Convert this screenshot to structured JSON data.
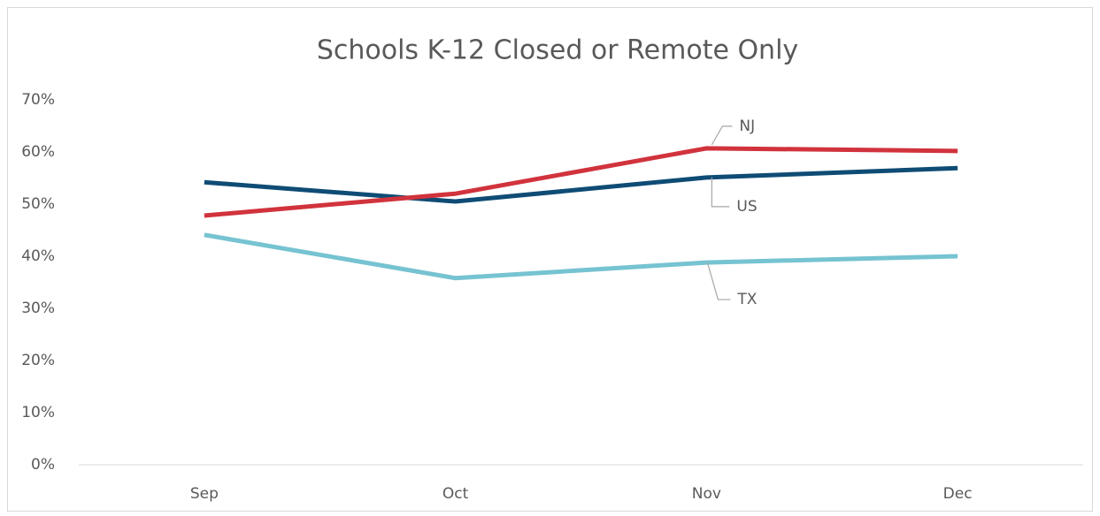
{
  "chart_data": {
    "type": "line",
    "title": "Schools K-12 Closed or Remote Only",
    "categories": [
      "Sep",
      "Oct",
      "Nov",
      "Dec"
    ],
    "series": [
      {
        "name": "US",
        "color": "#0f4c75",
        "values": [
          54.2,
          50.5,
          55.1,
          56.9
        ]
      },
      {
        "name": "NJ",
        "color": "#d1333d",
        "values": [
          47.8,
          52.0,
          60.7,
          60.2
        ]
      },
      {
        "name": "TX",
        "color": "#76c3d1",
        "values": [
          44.1,
          35.8,
          38.8,
          40.0
        ]
      }
    ],
    "ylim": [
      0,
      70
    ],
    "yticks": [
      {
        "value": 0,
        "label": "0%"
      },
      {
        "value": 10,
        "label": "10%"
      },
      {
        "value": 20,
        "label": "20%"
      },
      {
        "value": 30,
        "label": "30%"
      },
      {
        "value": 40,
        "label": "40%"
      },
      {
        "value": 50,
        "label": "50%"
      },
      {
        "value": 60,
        "label": "60%"
      },
      {
        "value": 70,
        "label": "70%"
      }
    ],
    "grid": false
  }
}
